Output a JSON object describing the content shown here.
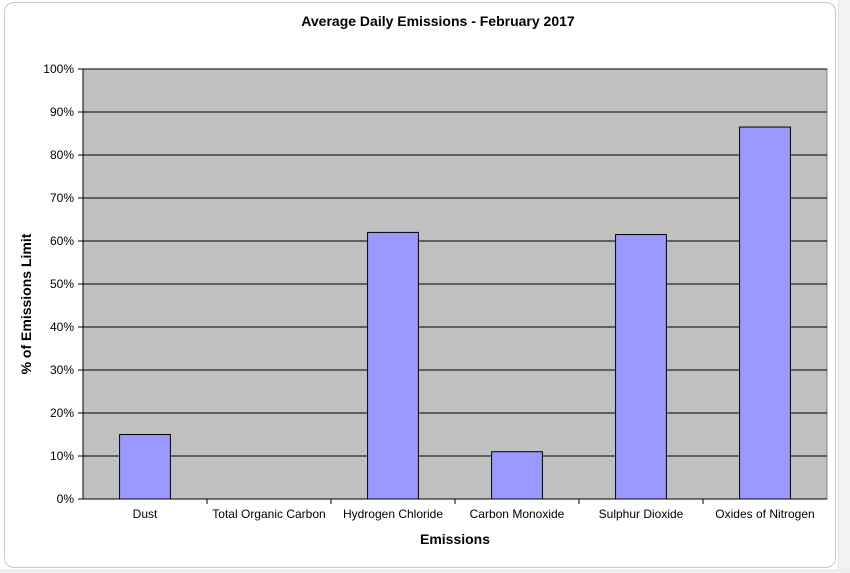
{
  "chart_data": {
    "type": "bar",
    "title": "Average Daily Emissions - February 2017",
    "xlabel": "Emissions",
    "ylabel": "% of Emissions Limit",
    "categories": [
      "Dust",
      "Total Organic Carbon",
      "Hydrogen Chloride",
      "Carbon Monoxide",
      "Sulphur Dioxide",
      "Oxides of Nitrogen"
    ],
    "values": [
      15,
      0,
      62,
      11,
      61.5,
      86.5
    ],
    "ylim": [
      0,
      100
    ],
    "yticks": [
      "0%",
      "10%",
      "20%",
      "30%",
      "40%",
      "50%",
      "60%",
      "70%",
      "80%",
      "90%",
      "100%"
    ],
    "grid": true,
    "legend": "none",
    "colors": {
      "bar_fill": "#9999ff",
      "bar_stroke": "#000000",
      "plot_background": "#c0c0c0",
      "gridline": "#000000"
    }
  }
}
